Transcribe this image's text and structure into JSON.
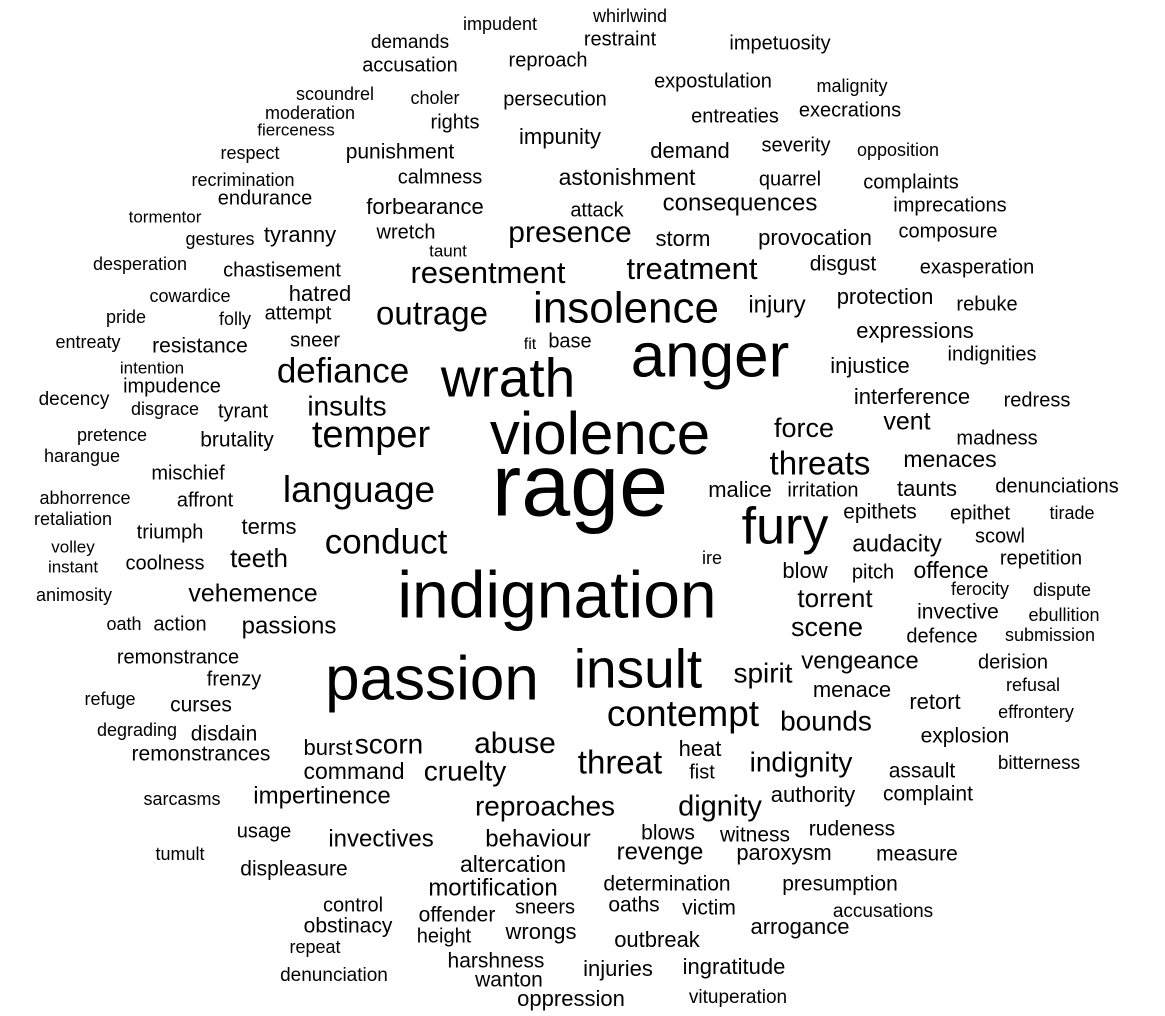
{
  "words": [
    "impudent",
    "whirlwind",
    "demands",
    "restraint",
    "impetuosity",
    "accusation",
    "reproach",
    "expostulation",
    "malignity",
    "scoundrel",
    "choler",
    "persecution",
    "moderation",
    "rights",
    "entreaties",
    "execrations",
    "fierceness",
    "impunity",
    "severity",
    "opposition",
    "respect",
    "punishment",
    "demand",
    "recrimination",
    "calmness",
    "astonishment",
    "quarrel",
    "complaints",
    "endurance",
    "forbearance",
    "attack",
    "consequences",
    "imprecations",
    "tormentor",
    "presence",
    "wretch",
    "storm",
    "provocation",
    "composure",
    "gestures",
    "tyranny",
    "taunt",
    "desperation",
    "chastisement",
    "resentment",
    "treatment",
    "disgust",
    "exasperation",
    "cowardice",
    "hatred",
    "protection",
    "rebuke",
    "pride",
    "folly",
    "attempt",
    "outrage",
    "insolence",
    "injury",
    "expressions",
    "entreaty",
    "resistance",
    "sneer",
    "fit",
    "base",
    "anger",
    "intention",
    "wrath",
    "defiance",
    "injustice",
    "indignities",
    "impudence",
    "decency",
    "disgrace",
    "tyrant",
    "insults",
    "interference",
    "redress",
    "pretence",
    "temper",
    "violence",
    "force",
    "vent",
    "madness",
    "harangue",
    "brutality",
    "mischief",
    "threats",
    "menaces",
    "abhorrence",
    "affront",
    "language",
    "rage",
    "malice",
    "irritation",
    "taunts",
    "denunciations",
    "retaliation",
    "terms",
    "epithets",
    "epithet",
    "tirade",
    "triumph",
    "fury",
    "scowl",
    "volley",
    "conduct",
    "audacity",
    "teeth",
    "instant",
    "coolness",
    "ire",
    "repetition",
    "blow",
    "pitch",
    "offence",
    "animosity",
    "vehemence",
    "indignation",
    "torrent",
    "ferocity",
    "dispute",
    "invective",
    "ebullition",
    "oath",
    "action",
    "passions",
    "scene",
    "defence",
    "submission",
    "remonstrance",
    "vengeance",
    "derision",
    "frenzy",
    "passion",
    "insult",
    "spirit",
    "refusal",
    "menace",
    "retort",
    "refuge",
    "curses",
    "contempt",
    "bounds",
    "effrontery",
    "degrading",
    "disdain",
    "explosion",
    "remonstrances",
    "burst",
    "scorn",
    "abuse",
    "heat",
    "bitterness",
    "threat",
    "indignity",
    "command",
    "cruelty",
    "fist",
    "assault",
    "sarcasms",
    "impertinence",
    "reproaches",
    "dignity",
    "authority",
    "complaint",
    "usage",
    "rudeness",
    "invectives",
    "behaviour",
    "blows",
    "witness",
    "tumult",
    "revenge",
    "paroxysm",
    "measure",
    "displeasure",
    "altercation",
    "mortification",
    "determination",
    "presumption",
    "control",
    "sneers",
    "oaths",
    "victim",
    "accusations",
    "offender",
    "obstinacy",
    "arrogance",
    "height",
    "wrongs",
    "outbreak",
    "repeat",
    "harshness",
    "injuries",
    "ingratitude",
    "denunciation",
    "wanton",
    "oppression",
    "vituperation"
  ]
}
